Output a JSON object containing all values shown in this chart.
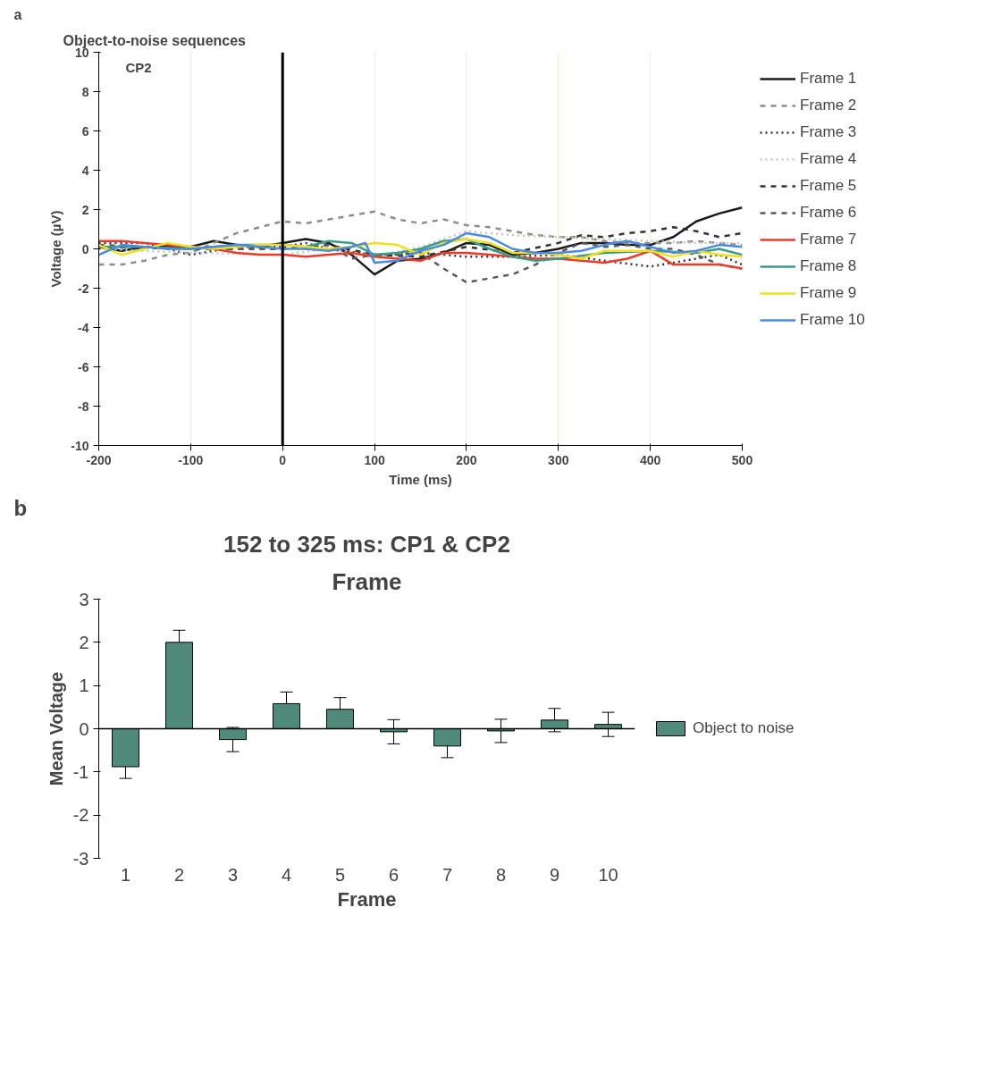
{
  "chart_data": [
    {
      "type": "line",
      "title": "Object-to-noise sequences",
      "xlabel": "Time (ms)",
      "ylabel": "Voltage (µV)",
      "annotations": [
        "a",
        "CP2"
      ],
      "xlim": [
        -200,
        500
      ],
      "ylim": [
        -10,
        10
      ],
      "xticks": [
        -200,
        -100,
        0,
        100,
        200,
        300,
        400,
        500
      ],
      "yticks": [
        -10,
        -8,
        -6,
        -4,
        -2,
        0,
        2,
        4,
        6,
        8,
        10
      ],
      "grid": "x",
      "legend": "right",
      "ref_lines": [
        {
          "axis": "x",
          "value": 0,
          "color": "#000000"
        }
      ],
      "series": [
        {
          "name": "Frame 1",
          "color": "#1a1a1a",
          "line_style": "solid",
          "x": [
            -200,
            -175,
            -150,
            -125,
            -100,
            -75,
            -50,
            -25,
            0,
            25,
            50,
            75,
            100,
            125,
            150,
            175,
            200,
            225,
            250,
            275,
            300,
            325,
            350,
            375,
            400,
            425,
            450,
            475,
            500
          ],
          "values": [
            0.1,
            -0.1,
            0.1,
            0.1,
            0.1,
            0.4,
            0.2,
            0.1,
            0.3,
            0.5,
            0.3,
            -0.3,
            -1.3,
            -0.6,
            -0.5,
            -0.2,
            0.3,
            0.2,
            -0.3,
            -0.2,
            0,
            0.3,
            0.3,
            0.2,
            0.2,
            0.6,
            1.4,
            1.8,
            2.1
          ]
        },
        {
          "name": "Frame 2",
          "color": "#8c8c8c",
          "line_style": "dashed",
          "x": [
            -200,
            -175,
            -150,
            -125,
            -100,
            -75,
            -50,
            -25,
            0,
            25,
            50,
            75,
            100,
            125,
            150,
            175,
            200,
            225,
            250,
            275,
            300,
            325,
            350,
            375,
            400,
            425,
            450,
            475,
            500
          ],
          "values": [
            -0.8,
            -0.8,
            -0.6,
            -0.3,
            -0.2,
            0.3,
            0.8,
            1.1,
            1.4,
            1.3,
            1.5,
            1.7,
            1.9,
            1.5,
            1.3,
            1.5,
            1.2,
            1.1,
            0.9,
            0.7,
            0.6,
            0.6,
            0.4,
            0.3,
            0.3,
            0.3,
            0.4,
            0.3,
            0.2
          ]
        },
        {
          "name": "Frame 3",
          "color": "#333333",
          "line_style": "dotted",
          "x": [
            -200,
            -150,
            -100,
            -50,
            0,
            25,
            50,
            100,
            150,
            175,
            200,
            250,
            300,
            350,
            400,
            450,
            475,
            500
          ],
          "values": [
            0.3,
            0.3,
            -0.3,
            0.1,
            0.1,
            0.3,
            0,
            -0.3,
            -0.2,
            -0.3,
            -0.4,
            -0.4,
            -0.3,
            -0.6,
            -0.9,
            -0.5,
            -0.3,
            -0.8
          ]
        },
        {
          "name": "Frame 4",
          "color": "#c8c8b4",
          "line_style": "dotted",
          "x": [
            -200,
            -100,
            0,
            50,
            100,
            150,
            200,
            250,
            300,
            350,
            400,
            450,
            500
          ],
          "values": [
            0,
            -0.2,
            -0.3,
            0,
            -0.4,
            0.1,
            0.9,
            0.7,
            0.6,
            0.5,
            0.4,
            0.3,
            0.3
          ]
        },
        {
          "name": "Frame 5",
          "color": "#333333",
          "line_style": "dashed",
          "x": [
            -200,
            -100,
            0,
            50,
            100,
            150,
            200,
            250,
            300,
            325,
            350,
            375,
            400,
            425,
            450,
            475,
            500
          ],
          "values": [
            0.1,
            0,
            0,
            0.2,
            -0.3,
            -0.4,
            0.1,
            -0.2,
            0.3,
            0.7,
            0.6,
            0.8,
            0.9,
            1.1,
            0.9,
            0.6,
            0.8
          ]
        },
        {
          "name": "Frame 6",
          "color": "#5a5a5a",
          "line_style": "dashed",
          "x": [
            -200,
            -100,
            0,
            50,
            75,
            100,
            125,
            150,
            175,
            200,
            225,
            250,
            275,
            300,
            325,
            350,
            375,
            400,
            425,
            450,
            475,
            500
          ],
          "values": [
            0.2,
            0,
            0,
            0.2,
            -0.5,
            -0.3,
            -0.3,
            -0.2,
            -1.0,
            -1.7,
            -1.5,
            -1.3,
            -0.8,
            -0.2,
            0.3,
            0.1,
            0.2,
            0,
            0,
            -0.3,
            -0.8,
            -1.0
          ]
        },
        {
          "name": "Frame 7",
          "color": "#ee3a2a",
          "line_style": "solid",
          "x": [
            -200,
            -175,
            -150,
            -100,
            -75,
            -50,
            -25,
            0,
            25,
            50,
            75,
            100,
            125,
            150,
            175,
            200,
            225,
            250,
            275,
            300,
            325,
            350,
            375,
            400,
            425,
            450,
            475,
            500
          ],
          "values": [
            0.4,
            0.4,
            0.3,
            0.1,
            0,
            -0.2,
            -0.3,
            -0.3,
            -0.4,
            -0.3,
            -0.2,
            -0.4,
            -0.5,
            -0.6,
            -0.2,
            -0.2,
            -0.3,
            -0.4,
            -0.5,
            -0.5,
            -0.6,
            -0.7,
            -0.5,
            -0.1,
            -0.8,
            -0.8,
            -0.8,
            -1.0
          ]
        },
        {
          "name": "Frame 8",
          "color": "#3a9a8a",
          "line_style": "solid",
          "x": [
            -200,
            -150,
            -100,
            -50,
            0,
            25,
            50,
            75,
            100,
            125,
            150,
            175,
            200,
            225,
            250,
            275,
            300,
            350,
            400,
            450,
            475,
            500
          ],
          "values": [
            0.1,
            0.1,
            0,
            0.2,
            0.2,
            0.1,
            0.4,
            0.3,
            -0.3,
            -0.2,
            0,
            0.4,
            0.5,
            0,
            -0.4,
            -0.6,
            -0.5,
            -0.2,
            -0.1,
            -0.2,
            0,
            -0.3
          ]
        },
        {
          "name": "Frame 9",
          "color": "#f0e020",
          "line_style": "solid",
          "x": [
            -200,
            -175,
            -150,
            -125,
            -100,
            -75,
            -50,
            -25,
            0,
            25,
            50,
            75,
            100,
            125,
            150,
            175,
            200,
            225,
            250,
            275,
            300,
            325,
            350,
            375,
            400,
            425,
            450,
            475,
            500
          ],
          "values": [
            0.2,
            -0.3,
            0,
            0.3,
            0.1,
            0,
            0.1,
            0.2,
            0.2,
            0.1,
            0,
            0.1,
            0.3,
            0.2,
            -0.3,
            0.3,
            0.5,
            0.3,
            -0.2,
            -0.2,
            -0.3,
            -0.5,
            -0.1,
            -0.1,
            -0.1,
            -0.4,
            -0.1,
            -0.3,
            -0.4
          ]
        },
        {
          "name": "Frame 10",
          "color": "#4a8ae0",
          "line_style": "solid",
          "x": [
            -200,
            -175,
            -150,
            -125,
            -100,
            -75,
            -50,
            -25,
            0,
            25,
            50,
            75,
            90,
            100,
            125,
            150,
            175,
            200,
            225,
            250,
            275,
            300,
            325,
            350,
            375,
            400,
            425,
            450,
            475,
            500
          ],
          "values": [
            -0.3,
            0.2,
            0.1,
            0,
            0,
            0.1,
            0.2,
            0.1,
            0,
            0,
            -0.1,
            0.1,
            0.3,
            -0.7,
            -0.6,
            -0.1,
            0.2,
            0.8,
            0.6,
            0,
            -0.2,
            -0.2,
            -0.1,
            0.2,
            0.4,
            0.1,
            -0.2,
            -0.1,
            0.2,
            0.1
          ]
        }
      ]
    },
    {
      "type": "bar",
      "title": "152 to 325 ms: CP1 & CP2",
      "subtitle": "Frame",
      "xlabel": "Frame",
      "ylabel": "Mean Voltage",
      "annotations": [
        "b"
      ],
      "categories": [
        "1",
        "2",
        "3",
        "4",
        "5",
        "6",
        "7",
        "8",
        "9",
        "10"
      ],
      "ylim": [
        -3,
        3
      ],
      "yticks": [
        -3,
        -2,
        -1,
        0,
        1,
        2,
        3
      ],
      "legend": "right",
      "ref_lines": [
        {
          "axis": "y",
          "value": 0,
          "color": "#000000"
        }
      ],
      "series": [
        {
          "name": "Object to noise",
          "color": "#4f8a7a",
          "values": [
            -0.88,
            2.0,
            -0.25,
            0.58,
            0.45,
            -0.07,
            -0.4,
            -0.05,
            0.2,
            0.1
          ],
          "errors": [
            0.27,
            0.28,
            0.28,
            0.27,
            0.27,
            0.28,
            0.27,
            0.27,
            0.27,
            0.28
          ]
        }
      ]
    }
  ]
}
